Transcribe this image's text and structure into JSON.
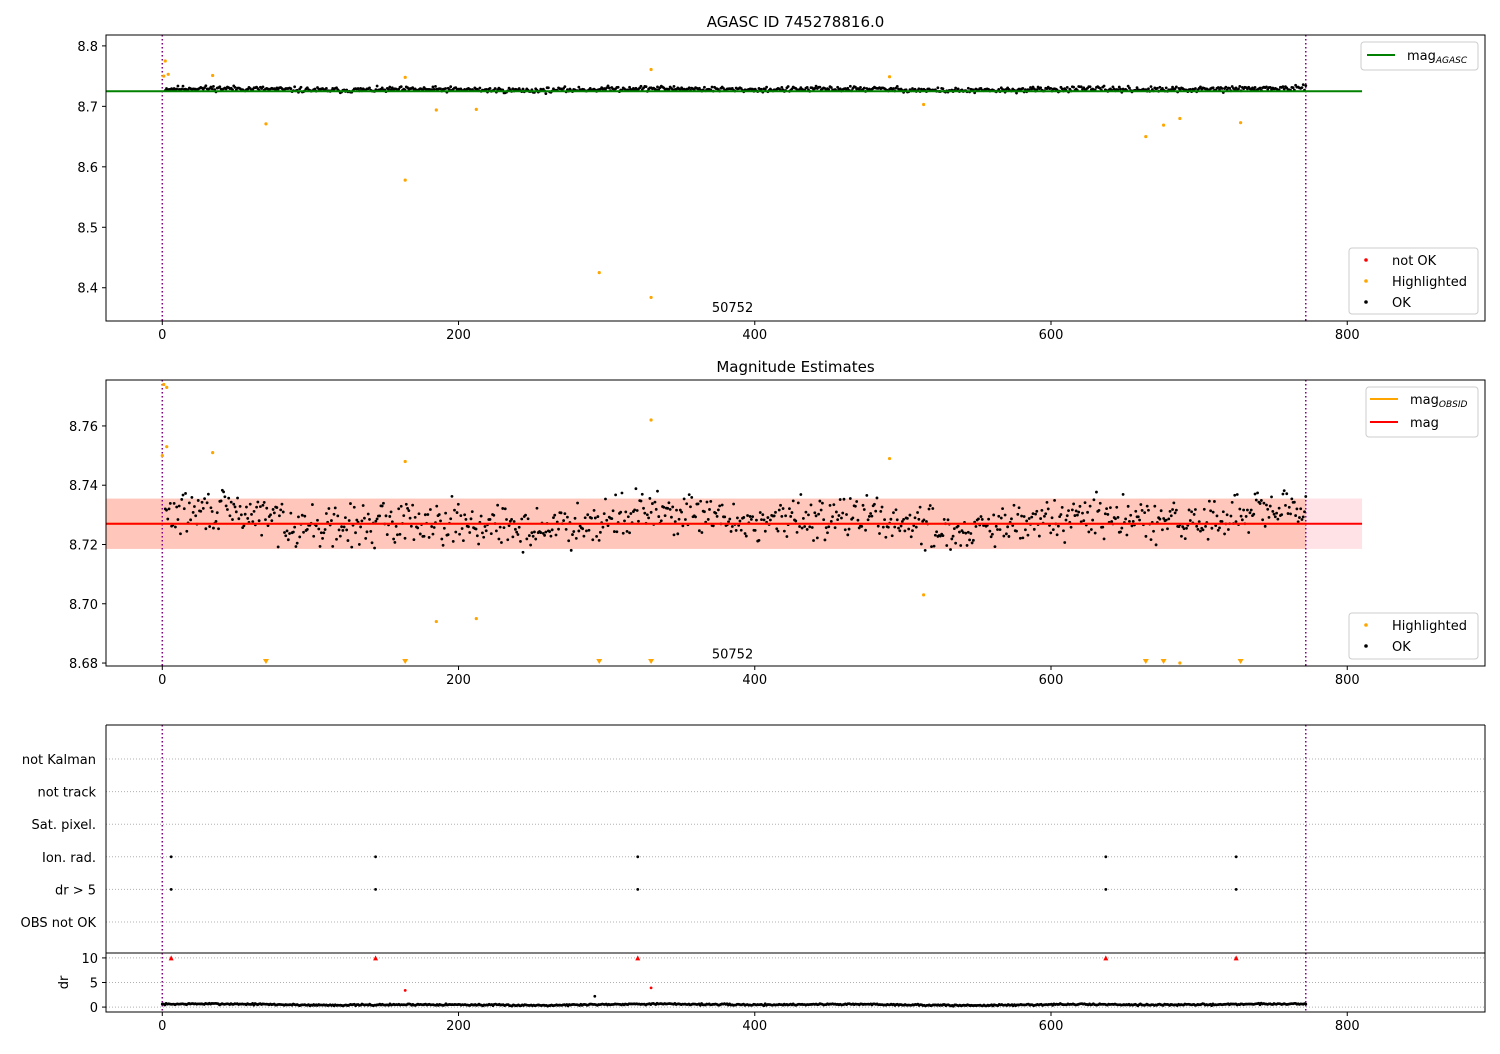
{
  "chart_data": [
    {
      "type": "scatter",
      "title": "AGASC ID 745278816.0",
      "xlim": [
        -38,
        893
      ],
      "ylim": [
        8.345,
        8.818
      ],
      "xticks": [
        0,
        200,
        400,
        600,
        800
      ],
      "xticklabels": [
        "0",
        "200",
        "400",
        "600",
        "800"
      ],
      "yticks": [
        8.4,
        8.5,
        8.6,
        8.7,
        8.8
      ],
      "yticklabels": [
        "8.4",
        "8.5",
        "8.6",
        "8.7",
        "8.8"
      ],
      "annotation": {
        "text": "50752",
        "x": 385,
        "y": 8.36
      },
      "vlines": [
        0,
        772
      ],
      "line": {
        "name": "mag$_{AGASC}$",
        "label_main": "mag",
        "label_sub": "AGASC",
        "y": 8.725,
        "x_range": [
          -38,
          810
        ],
        "color": "#008000"
      },
      "legend_upper": [
        {
          "label_main": "mag",
          "label_sub": "AGASC",
          "color": "#008000"
        }
      ],
      "legend_lower": [
        {
          "label": "not OK",
          "color": "#ff0000"
        },
        {
          "label": "Highlighted",
          "color": "#ffa500"
        },
        {
          "label": "OK",
          "color": "#000000"
        }
      ],
      "ok_series": {
        "center": 8.728,
        "amplitude": 0.006,
        "x_range": [
          2,
          772
        ],
        "count": 900
      },
      "highlighted_points": [
        {
          "x": 2,
          "y": 8.775
        },
        {
          "x": 1,
          "y": 8.75
        },
        {
          "x": 4,
          "y": 8.753
        },
        {
          "x": 34,
          "y": 8.751
        },
        {
          "x": 70,
          "y": 8.671
        },
        {
          "x": 164,
          "y": 8.748
        },
        {
          "x": 164,
          "y": 8.578
        },
        {
          "x": 185,
          "y": 8.694
        },
        {
          "x": 212,
          "y": 8.695
        },
        {
          "x": 295,
          "y": 8.425
        },
        {
          "x": 330,
          "y": 8.384
        },
        {
          "x": 330,
          "y": 8.761
        },
        {
          "x": 491,
          "y": 8.749
        },
        {
          "x": 514,
          "y": 8.703
        },
        {
          "x": 664,
          "y": 8.65
        },
        {
          "x": 676,
          "y": 8.669
        },
        {
          "x": 687,
          "y": 8.68
        },
        {
          "x": 728,
          "y": 8.673
        }
      ]
    },
    {
      "type": "scatter",
      "title": "Magnitude Estimates",
      "xlim": [
        -38,
        893
      ],
      "ylim": [
        8.679,
        8.7755
      ],
      "xticks": [
        0,
        200,
        400,
        600,
        800
      ],
      "xticklabels": [
        "0",
        "200",
        "400",
        "600",
        "800"
      ],
      "yticks": [
        8.68,
        8.7,
        8.72,
        8.74,
        8.76
      ],
      "yticklabels": [
        "8.68",
        "8.70",
        "8.72",
        "8.74",
        "8.76"
      ],
      "annotation": {
        "text": "50752",
        "x": 385,
        "y": 8.6815
      },
      "vlines": [
        0,
        772
      ],
      "bands": [
        {
          "y1": 8.7185,
          "y2": 8.7355,
          "x_range": [
            -38,
            810
          ],
          "color": "#ffb6c1",
          "opacity": 0.4
        },
        {
          "y1": 8.7185,
          "y2": 8.7355,
          "x_range": [
            -38,
            772
          ],
          "color": "#ffa07a",
          "opacity": 0.4
        }
      ],
      "lines": [
        {
          "label_main": "mag",
          "label_sub": "OBSID",
          "y": 8.727,
          "x_range": [
            -38,
            772
          ],
          "color": "#ffa500"
        },
        {
          "label_main": "mag",
          "label_sub": "",
          "y": 8.727,
          "x_range": [
            -38,
            810
          ],
          "color": "#ff0000"
        }
      ],
      "legend_upper": [
        {
          "label_main": "mag",
          "label_sub": "OBSID",
          "color": "#ffa500"
        },
        {
          "label_main": "mag",
          "label_sub": "",
          "color": "#ff0000"
        }
      ],
      "legend_lower": [
        {
          "label": "Highlighted",
          "color": "#ffa500"
        },
        {
          "label": "OK",
          "color": "#000000"
        }
      ],
      "ok_series": {
        "center": 8.728,
        "amplitude": 0.0085,
        "x_range": [
          2,
          772
        ],
        "count": 900
      },
      "highlighted_points": [
        {
          "x": 1,
          "y": 8.774
        },
        {
          "x": 3,
          "y": 8.773
        },
        {
          "x": 0,
          "y": 8.75
        },
        {
          "x": 3,
          "y": 8.753
        },
        {
          "x": 34,
          "y": 8.751
        },
        {
          "x": 164,
          "y": 8.748
        },
        {
          "x": 185,
          "y": 8.694
        },
        {
          "x": 212,
          "y": 8.695
        },
        {
          "x": 330,
          "y": 8.762
        },
        {
          "x": 491,
          "y": 8.749
        },
        {
          "x": 514,
          "y": 8.703
        },
        {
          "x": 687,
          "y": 8.68
        }
      ],
      "below_range_markers": [
        70,
        164,
        295,
        330,
        664,
        676,
        728
      ]
    },
    {
      "type": "scatter",
      "title": "",
      "xlim": [
        -38,
        893
      ],
      "categories": [
        "not Kalman",
        "not track",
        "Sat. pixel.",
        "Ion. rad.",
        "dr > 5",
        "OBS not OK"
      ],
      "vlines": [
        0,
        772
      ],
      "flag_points": {
        "Ion. rad.": [
          6,
          144,
          321,
          637,
          725
        ],
        "dr > 5": [
          6,
          144,
          321,
          637,
          725
        ]
      }
    },
    {
      "type": "scatter",
      "title": "",
      "xlim": [
        -38,
        893
      ],
      "ylim": [
        -1,
        11
      ],
      "ylabel": "dr",
      "xticks": [
        0,
        200,
        400,
        600,
        800
      ],
      "xticklabels": [
        "0",
        "200",
        "400",
        "600",
        "800"
      ],
      "yticks": [
        0,
        5,
        10
      ],
      "yticklabels": [
        "0",
        "5",
        "10"
      ],
      "vlines": [
        0,
        772
      ],
      "ok_series": {
        "center": 0.5,
        "amplitude": 0.3,
        "x_range": [
          0,
          772
        ],
        "count": 900
      },
      "capped_markers": {
        "x": [
          6,
          144,
          321,
          637,
          725
        ],
        "y": 10,
        "color": "#ff0000"
      },
      "red_points": [
        {
          "x": 164,
          "y": 3.4
        },
        {
          "x": 330,
          "y": 3.9
        }
      ],
      "black_points": [
        {
          "x": 292,
          "y": 2.2
        }
      ]
    }
  ]
}
